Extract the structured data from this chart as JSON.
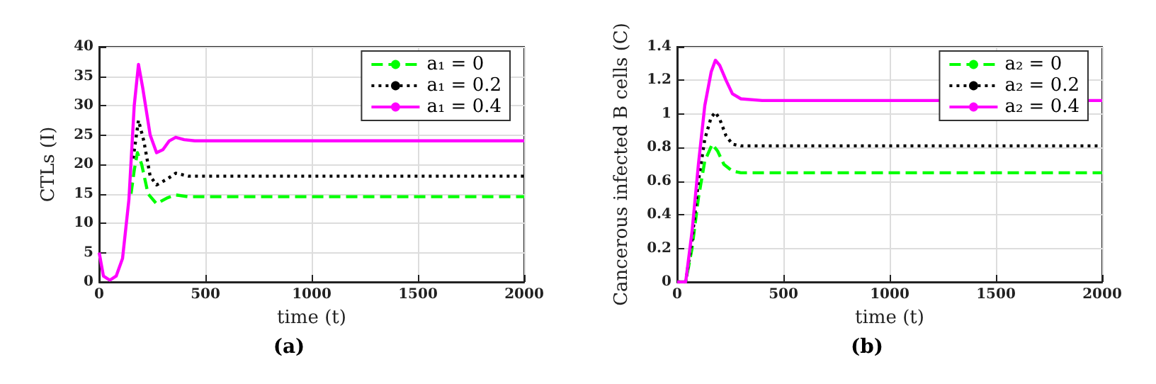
{
  "chart_data": [
    {
      "type": "line",
      "xlabel": "time (t)",
      "ylabel": "CTLs (I)",
      "xlim": [
        0,
        2000
      ],
      "xticks": [
        0,
        500,
        1000,
        1500,
        2000
      ],
      "ylim": [
        0,
        40
      ],
      "yticks": [
        0,
        5,
        10,
        15,
        20,
        25,
        30,
        35,
        40
      ],
      "grid": true,
      "legend": "top right",
      "marker": "none",
      "annotations": [
        "(a)"
      ],
      "series": [
        {
          "name": "a₁ = 0",
          "color": "#00ff00",
          "line_style": "dashed",
          "x": [
            150,
            165,
            180,
            200,
            230,
            270,
            320,
            360,
            420,
            500,
            2000
          ],
          "values": [
            15,
            19,
            22,
            20,
            15,
            13.3,
            14.3,
            14.8,
            14.5,
            14.5,
            14.5
          ]
        },
        {
          "name": "a₁ = 0.2",
          "color": "#000000",
          "line_style": "dotted",
          "x": [
            160,
            185,
            210,
            240,
            270,
            320,
            360,
            420,
            500,
            2000
          ],
          "values": [
            21,
            27.5,
            24,
            18,
            16.5,
            17.5,
            18.5,
            18,
            18,
            18
          ]
        },
        {
          "name": "a₁ = 0.4",
          "color": "#ff00ff",
          "line_style": "solid",
          "x": [
            0,
            20,
            50,
            80,
            110,
            140,
            165,
            185,
            205,
            240,
            270,
            300,
            330,
            360,
            400,
            450,
            2000
          ],
          "values": [
            5,
            1,
            0.3,
            1,
            4,
            14,
            30,
            37,
            33,
            25,
            22,
            22.5,
            24,
            24.6,
            24.2,
            24,
            24
          ]
        }
      ]
    },
    {
      "type": "line",
      "xlabel": "time (t)",
      "ylabel": "Cancerous infected B cells (C)",
      "xlim": [
        0,
        2000
      ],
      "xticks": [
        0,
        500,
        1000,
        1500,
        2000
      ],
      "ylim": [
        0,
        1.4
      ],
      "yticks": [
        0,
        0.2,
        0.4,
        0.6,
        0.8,
        1,
        1.2,
        1.4
      ],
      "grid": true,
      "legend": "top right",
      "marker": "none",
      "annotations": [
        "(b)"
      ],
      "series": [
        {
          "name": "a₂ = 0",
          "color": "#00ff00",
          "line_style": "dashed",
          "x": [
            0,
            40,
            70,
            100,
            130,
            165,
            190,
            220,
            260,
            300,
            2000
          ],
          "values": [
            0,
            0,
            0.2,
            0.5,
            0.72,
            0.82,
            0.78,
            0.7,
            0.66,
            0.65,
            0.65
          ]
        },
        {
          "name": "a₂ = 0.2",
          "color": "#000000",
          "line_style": "dotted",
          "x": [
            0,
            40,
            70,
            100,
            130,
            160,
            180,
            200,
            230,
            260,
            300,
            2000
          ],
          "values": [
            0,
            0,
            0.25,
            0.6,
            0.85,
            0.98,
            1.01,
            0.97,
            0.87,
            0.82,
            0.81,
            0.81
          ]
        },
        {
          "name": "a₂ = 0.4",
          "color": "#ff00ff",
          "line_style": "solid",
          "x": [
            0,
            40,
            70,
            100,
            130,
            160,
            180,
            200,
            230,
            260,
            300,
            400,
            2000
          ],
          "values": [
            0,
            0,
            0.3,
            0.7,
            1.05,
            1.25,
            1.32,
            1.29,
            1.2,
            1.12,
            1.09,
            1.08,
            1.08
          ]
        }
      ]
    }
  ]
}
